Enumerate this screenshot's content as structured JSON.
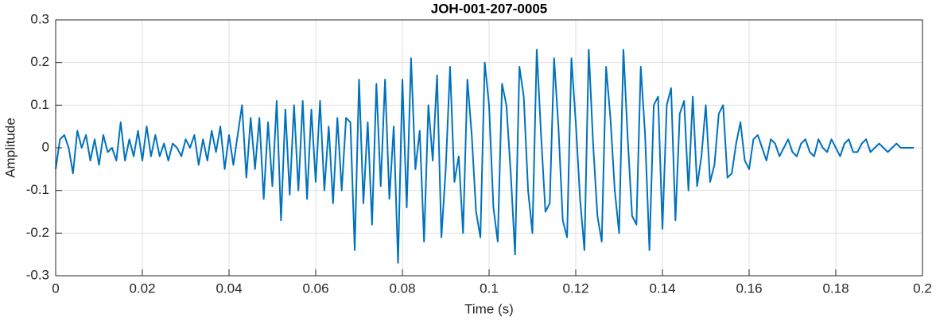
{
  "chart_data": {
    "type": "line",
    "title": "JOH-001-207-0005",
    "x_label": "Time (s)",
    "y_label": "Amplitude",
    "color": "#0072BD",
    "grid": true,
    "xlim": [
      0,
      0.2
    ],
    "xticks": [
      0,
      0.02,
      0.04,
      0.06,
      0.08,
      0.1,
      0.12,
      0.14,
      0.16,
      0.18,
      0.2
    ],
    "ylim": [
      -0.3,
      0.3
    ],
    "yticks": [
      -0.3,
      -0.2,
      -0.1,
      0,
      0.1,
      0.2,
      0.3
    ],
    "x": [
      0,
      0.001,
      0.002,
      0.003,
      0.004,
      0.005,
      0.006,
      0.007,
      0.008,
      0.009,
      0.01,
      0.011,
      0.012,
      0.013,
      0.014,
      0.015,
      0.016,
      0.017,
      0.018,
      0.019,
      0.02,
      0.021,
      0.022,
      0.023,
      0.024,
      0.025,
      0.026,
      0.027,
      0.028,
      0.029,
      0.03,
      0.031,
      0.032,
      0.033,
      0.034,
      0.035,
      0.036,
      0.037,
      0.038,
      0.039,
      0.04,
      0.041,
      0.042,
      0.043,
      0.044,
      0.045,
      0.046,
      0.047,
      0.048,
      0.049,
      0.05,
      0.051,
      0.052,
      0.053,
      0.054,
      0.055,
      0.056,
      0.057,
      0.058,
      0.059,
      0.06,
      0.061,
      0.062,
      0.063,
      0.064,
      0.065,
      0.066,
      0.067,
      0.068,
      0.069,
      0.07,
      0.071,
      0.072,
      0.073,
      0.074,
      0.075,
      0.076,
      0.077,
      0.078,
      0.079,
      0.08,
      0.081,
      0.082,
      0.083,
      0.084,
      0.085,
      0.086,
      0.087,
      0.088,
      0.089,
      0.09,
      0.091,
      0.092,
      0.093,
      0.094,
      0.095,
      0.096,
      0.097,
      0.098,
      0.099,
      0.1,
      0.101,
      0.102,
      0.103,
      0.104,
      0.105,
      0.106,
      0.107,
      0.108,
      0.109,
      0.11,
      0.111,
      0.112,
      0.113,
      0.114,
      0.115,
      0.116,
      0.117,
      0.118,
      0.119,
      0.12,
      0.121,
      0.122,
      0.123,
      0.124,
      0.125,
      0.126,
      0.127,
      0.128,
      0.129,
      0.13,
      0.131,
      0.132,
      0.133,
      0.134,
      0.135,
      0.136,
      0.137,
      0.138,
      0.139,
      0.14,
      0.141,
      0.142,
      0.143,
      0.144,
      0.145,
      0.146,
      0.147,
      0.148,
      0.149,
      0.15,
      0.151,
      0.152,
      0.153,
      0.154,
      0.155,
      0.156,
      0.157,
      0.158,
      0.159,
      0.16,
      0.161,
      0.162,
      0.163,
      0.164,
      0.165,
      0.166,
      0.167,
      0.168,
      0.169,
      0.17,
      0.171,
      0.172,
      0.173,
      0.174,
      0.175,
      0.176,
      0.177,
      0.178,
      0.179,
      0.18,
      0.181,
      0.182,
      0.183,
      0.184,
      0.185,
      0.186,
      0.187,
      0.188,
      0.189,
      0.19,
      0.191,
      0.192,
      0.193,
      0.194,
      0.195,
      0.196,
      0.197,
      0.198
    ],
    "values": [
      -0.05,
      0.02,
      0.03,
      0,
      -0.06,
      0.04,
      0,
      0.03,
      -0.03,
      0.02,
      -0.04,
      0.03,
      -0.01,
      0,
      -0.03,
      0.06,
      -0.03,
      0.02,
      -0.02,
      0.04,
      -0.03,
      0.05,
      -0.02,
      0.03,
      -0.02,
      0.01,
      -0.03,
      0.01,
      0,
      -0.02,
      0.02,
      0,
      0.03,
      -0.04,
      0.02,
      -0.03,
      0.04,
      -0.01,
      0.05,
      -0.05,
      0.03,
      -0.04,
      0.03,
      0.1,
      -0.07,
      0.07,
      -0.05,
      0.07,
      -0.12,
      0.06,
      -0.09,
      0.11,
      -0.17,
      0.09,
      -0.11,
      0.1,
      -0.1,
      0.11,
      -0.12,
      0.09,
      -0.08,
      0.11,
      -0.1,
      0.05,
      -0.13,
      0.07,
      -0.1,
      0.07,
      0.06,
      -0.24,
      0.16,
      -0.13,
      0.06,
      -0.18,
      0.15,
      -0.09,
      0.16,
      -0.12,
      0.05,
      -0.27,
      0.16,
      -0.14,
      0.21,
      -0.05,
      0.04,
      -0.22,
      0.1,
      -0.03,
      0.17,
      -0.21,
      -0.05,
      0.19,
      -0.08,
      -0.02,
      -0.2,
      0.16,
      0.03,
      -0.15,
      -0.21,
      0.2,
      0.1,
      -0.14,
      -0.22,
      0.15,
      0.1,
      -0.06,
      -0.25,
      0.19,
      0.12,
      -0.1,
      -0.2,
      0.23,
      0.03,
      -0.15,
      -0.13,
      0.21,
      0.05,
      -0.17,
      -0.21,
      0.21,
      0.06,
      -0.12,
      -0.24,
      0.23,
      0.01,
      -0.16,
      -0.22,
      0.19,
      0.07,
      -0.1,
      -0.2,
      0.23,
      0.02,
      -0.16,
      -0.18,
      0.19,
      0.03,
      -0.24,
      0.1,
      0.12,
      -0.19,
      0.1,
      0.14,
      -0.17,
      0.08,
      0.11,
      -0.1,
      0.12,
      -0.09,
      -0.02,
      0.1,
      -0.08,
      -0.04,
      0.08,
      0.1,
      -0.07,
      -0.06,
      0.01,
      0.06,
      -0.03,
      -0.05,
      0.02,
      0.03,
      0,
      -0.03,
      0.02,
      0.01,
      -0.02,
      0,
      0.02,
      -0.01,
      -0.02,
      0.01,
      0.02,
      -0.01,
      -0.02,
      0.02,
      0,
      -0.01,
      0.02,
      0,
      -0.02,
      0.01,
      0.02,
      -0.01,
      -0.01,
      0.01,
      0.02,
      -0.01,
      0,
      0.01,
      0,
      -0.01,
      0,
      0.01,
      0,
      0,
      0,
      0
    ]
  }
}
